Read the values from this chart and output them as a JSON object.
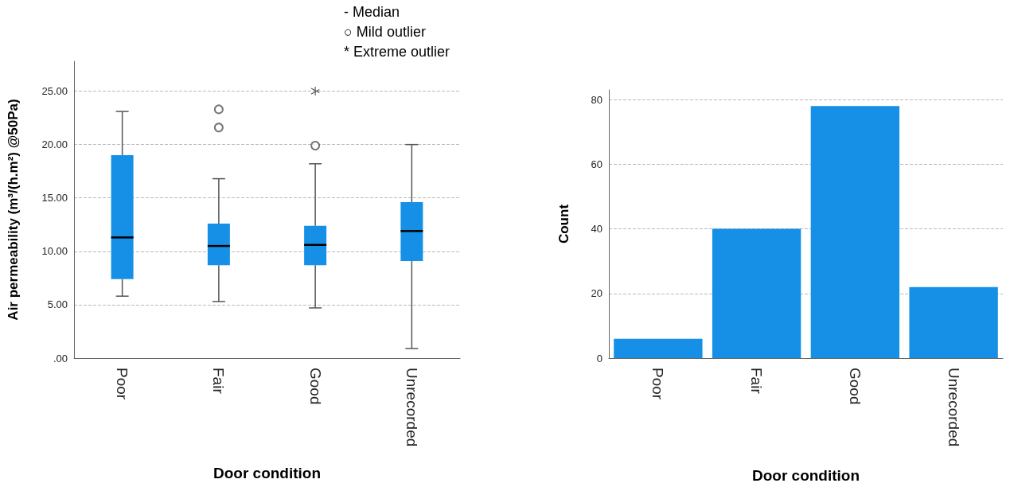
{
  "chart_data": [
    {
      "type": "box",
      "xlabel": "Door condition",
      "ylabel": "Air permeability (m³/(h.m²) @50Pa)",
      "categories": [
        "Poor",
        "Fair",
        "Good",
        "Unrecorded"
      ],
      "ylim": [
        0,
        27.8
      ],
      "yticks": [
        {
          "value": 0,
          "label": ".00"
        },
        {
          "value": 5,
          "label": "5.00"
        },
        {
          "value": 10,
          "label": "10.00"
        },
        {
          "value": 15,
          "label": "15.00"
        },
        {
          "value": 20,
          "label": "20.00"
        },
        {
          "value": 25,
          "label": "25.00"
        }
      ],
      "grid": "y",
      "annotations": [
        "- Median",
        "○ Mild outlier",
        "* Extreme outlier"
      ],
      "series": [
        {
          "type": "box",
          "color": "#1590e6",
          "marker": "circle",
          "boxes": [
            {
              "low": 5.8,
              "q1": 7.4,
              "median": 11.3,
              "q3": 19.0,
              "high": 23.1
            },
            {
              "low": 5.3,
              "q1": 8.7,
              "median": 10.5,
              "q3": 12.6,
              "high": 16.8,
              "outliers": [
                23.3,
                21.6
              ]
            },
            {
              "low": 4.7,
              "q1": 8.7,
              "median": 10.6,
              "q3": 12.4,
              "high": 18.2,
              "outliers": [
                19.9
              ]
            },
            {
              "low": 0.9,
              "q1": 9.1,
              "median": 11.9,
              "q3": 14.6,
              "high": 20.0
            }
          ]
        },
        {
          "type": "scatter",
          "color": "#333333",
          "marker": "cross",
          "x": [
            "Good"
          ],
          "values": [
            25.0
          ]
        }
      ]
    },
    {
      "type": "bar",
      "xlabel": "Door condition",
      "ylabel": "Count",
      "categories": [
        "Poor",
        "Fair",
        "Good",
        "Unrecorded"
      ],
      "ylim": [
        0,
        83
      ],
      "yticks": [
        0,
        20,
        40,
        60,
        80
      ],
      "grid": "y",
      "series": [
        {
          "color": "#1590e6",
          "values": [
            6,
            40,
            78,
            22
          ]
        }
      ]
    }
  ]
}
